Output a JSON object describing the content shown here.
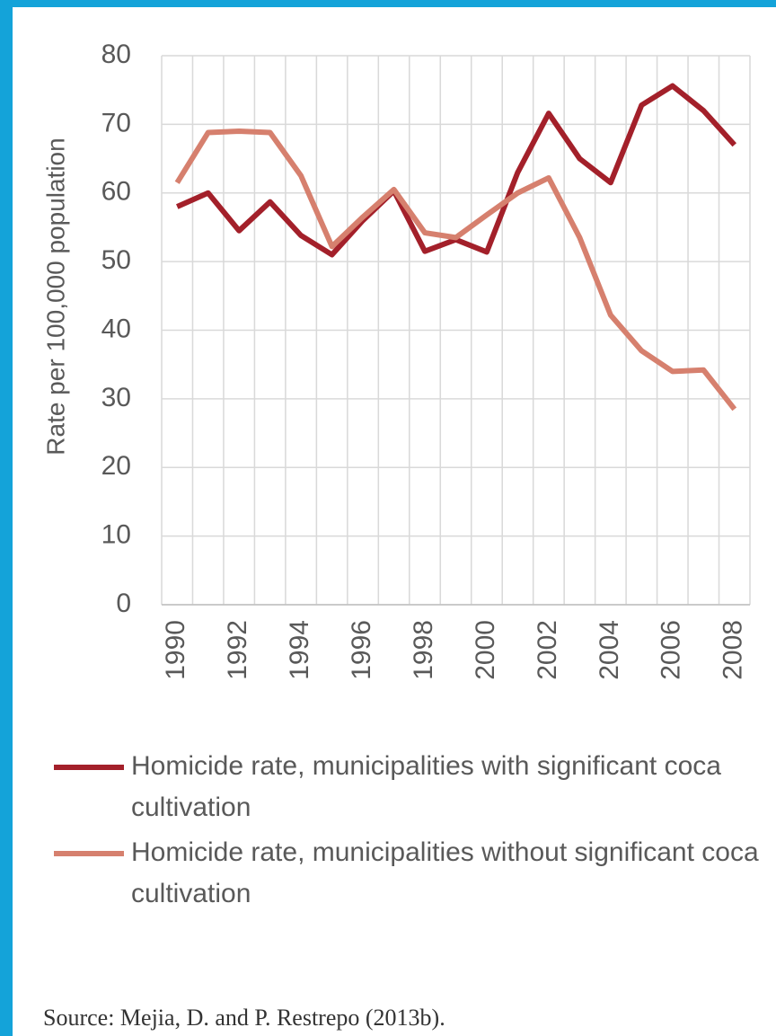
{
  "chart_data": {
    "type": "line",
    "y_label": "Rate per 100,000 population",
    "categories": [
      "1990",
      null,
      "1992",
      null,
      "1994",
      null,
      "1996",
      null,
      "1998",
      null,
      "2000",
      null,
      "2002",
      null,
      "2004",
      null,
      "2006",
      null,
      "2008"
    ],
    "series": [
      {
        "name": "Homicide rate, municipalities with significant coca cultivation",
        "color": "#a3202a",
        "values": [
          58,
          60,
          54.5,
          58.7,
          53.8,
          51,
          56,
          60.3,
          51.5,
          53.2,
          51.4,
          63,
          71.6,
          65,
          61.5,
          72.8,
          75.6,
          72,
          67
        ]
      },
      {
        "name": "Homicide rate, municipalities without significant coca cultivation",
        "color": "#d6806e",
        "values": [
          61.5,
          68.8,
          69,
          68.8,
          62.5,
          52.2,
          56.5,
          60.5,
          54.2,
          53.5,
          56.8,
          60,
          62.2,
          53.5,
          42.2,
          37,
          34,
          34.2,
          28.5
        ]
      }
    ],
    "ylim": [
      0,
      80
    ],
    "yticks": [
      0,
      10,
      20,
      30,
      40,
      50,
      60,
      70,
      80
    ],
    "grid": true,
    "source": "Source: Mejia, D. and P. Restrepo (2013b)."
  }
}
